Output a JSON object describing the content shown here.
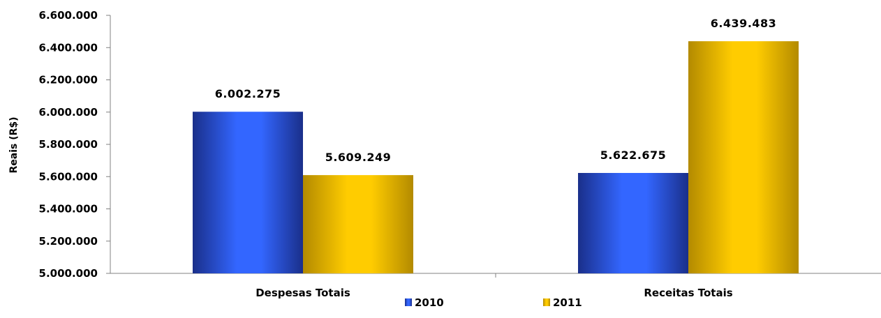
{
  "chart_data": {
    "type": "bar",
    "title": "",
    "xlabel": "",
    "ylabel": "Reais (R$)",
    "categories": [
      "Despesas Totais",
      "Receitas Totais"
    ],
    "series": [
      {
        "name": "2010",
        "values": [
          6002275,
          5622675
        ],
        "labels": [
          "6.002.275",
          "5.622.675"
        ],
        "color": "#3366ff",
        "color_dark": "#1a2f8a"
      },
      {
        "name": "2011",
        "values": [
          5609249,
          6439483
        ],
        "labels": [
          "5.609.249",
          "6.439.483"
        ],
        "color": "#ffcc00",
        "color_dark": "#b38a00"
      }
    ],
    "ylim": [
      5000000,
      6600000
    ],
    "yticks": [
      5000000,
      5200000,
      5400000,
      5600000,
      5800000,
      6000000,
      6200000,
      6400000,
      6600000
    ],
    "ytick_labels": [
      "5.000.000",
      "5.200.000",
      "5.400.000",
      "5.600.000",
      "5.800.000",
      "6.000.000",
      "6.200.000",
      "6.400.000",
      "6.600.000"
    ],
    "grid": false,
    "legend_position": "bottom"
  }
}
